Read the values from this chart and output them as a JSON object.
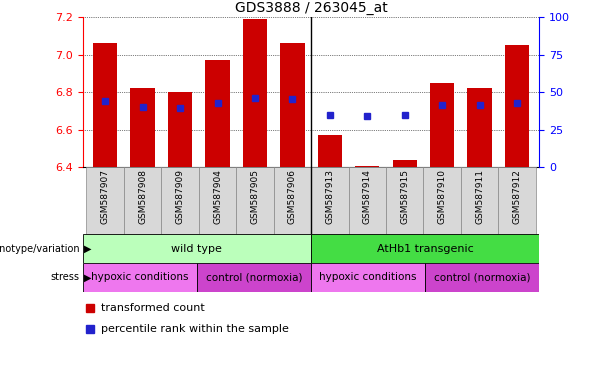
{
  "title": "GDS3888 / 263045_at",
  "samples": [
    "GSM587907",
    "GSM587908",
    "GSM587909",
    "GSM587904",
    "GSM587905",
    "GSM587906",
    "GSM587913",
    "GSM587914",
    "GSM587915",
    "GSM587910",
    "GSM587911",
    "GSM587912"
  ],
  "bar_values": [
    7.06,
    6.82,
    6.8,
    6.97,
    7.19,
    7.06,
    6.57,
    6.403,
    6.44,
    6.85,
    6.82,
    7.05
  ],
  "bar_base": 6.4,
  "percentile_values": [
    6.753,
    6.72,
    6.718,
    6.742,
    6.77,
    6.762,
    6.68,
    6.672,
    6.678,
    6.73,
    6.729,
    6.742
  ],
  "bar_color": "#cc0000",
  "percentile_color": "#2222cc",
  "ylim": [
    6.4,
    7.2
  ],
  "yticks_left": [
    6.4,
    6.6,
    6.8,
    7.0,
    7.2
  ],
  "yticks_right": [
    0,
    25,
    50,
    75,
    100
  ],
  "genotype_groups": [
    {
      "label": "wild type",
      "start": 0,
      "end": 6,
      "color": "#bbffbb"
    },
    {
      "label": "AtHb1 transgenic",
      "start": 6,
      "end": 12,
      "color": "#44dd44"
    }
  ],
  "stress_groups": [
    {
      "label": "hypoxic conditions",
      "start": 0,
      "end": 3,
      "color": "#ee77ee"
    },
    {
      "label": "control (normoxia)",
      "start": 3,
      "end": 6,
      "color": "#cc44cc"
    },
    {
      "label": "hypoxic conditions",
      "start": 6,
      "end": 9,
      "color": "#ee77ee"
    },
    {
      "label": "control (normoxia)",
      "start": 9,
      "end": 12,
      "color": "#cc44cc"
    }
  ],
  "legend_items": [
    {
      "label": "transformed count",
      "color": "#cc0000"
    },
    {
      "label": "percentile rank within the sample",
      "color": "#2222cc"
    }
  ],
  "left_label_genotype": "genotype/variation",
  "left_label_stress": "stress",
  "bar_width": 0.65,
  "n_samples": 12,
  "group_divider": 5.5,
  "cell_bg": "#d8d8d8",
  "cell_border": "#888888"
}
